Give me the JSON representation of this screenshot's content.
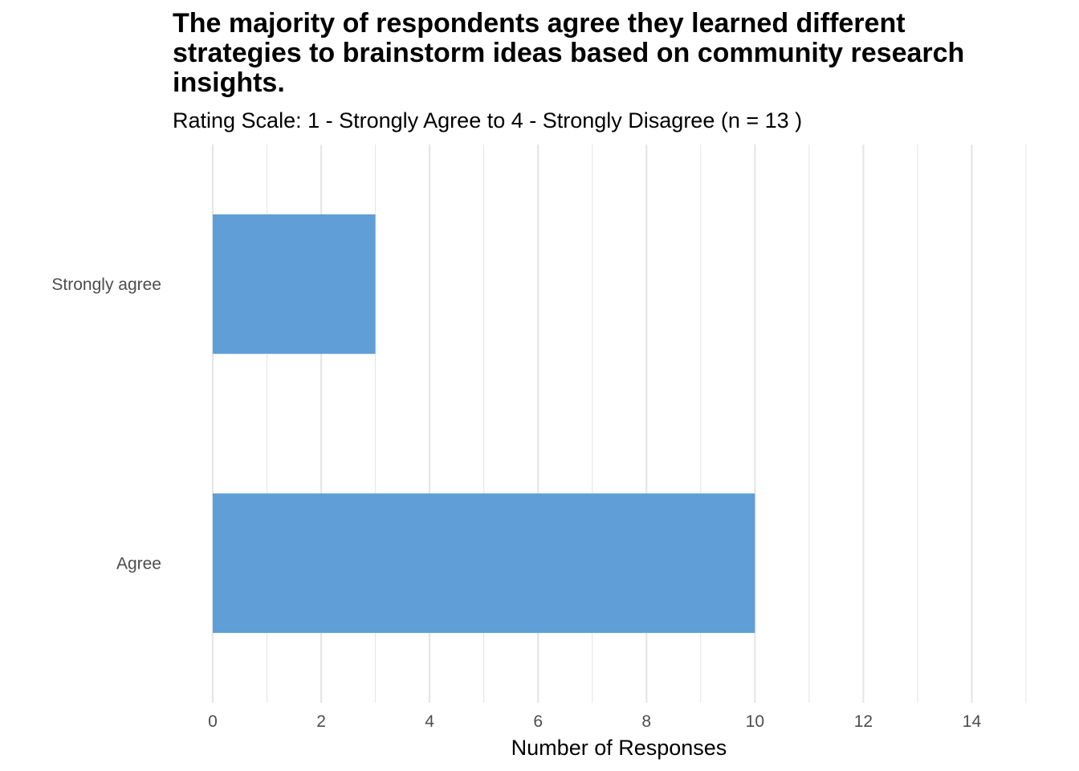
{
  "chart_data": {
    "type": "bar",
    "orientation": "horizontal",
    "title": "The majority of respondents agree they learned different strategies to brainstorm ideas based on community research insights.",
    "title_lines": [
      "The majority of respondents agree they learned different",
      "strategies to brainstorm ideas based on community research",
      "insights."
    ],
    "subtitle": "Rating Scale: 1 - Strongly Agree to 4 - Strongly Disagree (n = 13 )",
    "categories": [
      "Strongly agree",
      "Agree"
    ],
    "values": [
      3,
      10
    ],
    "xlabel": "Number of Responses",
    "ylabel": "",
    "xlim": [
      0,
      15
    ],
    "x_ticks": [
      0,
      2,
      4,
      6,
      8,
      10,
      12,
      14
    ],
    "grid": true,
    "legend": "none",
    "bar_color": "#5f9ed6",
    "grid_color": "#e6e6e6"
  }
}
